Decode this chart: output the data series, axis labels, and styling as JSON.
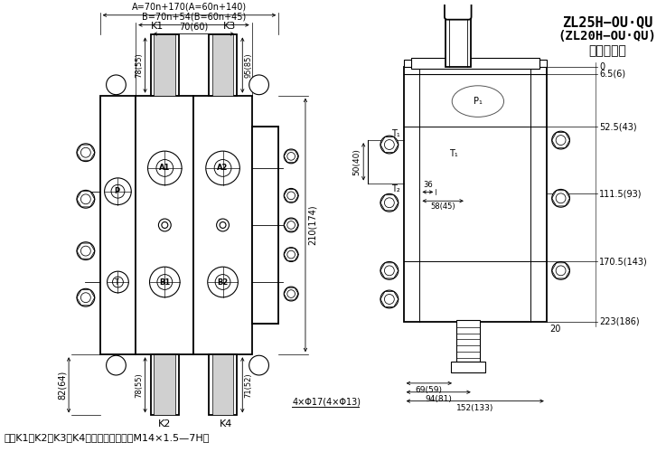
{
  "bg_color": "#ffffff",
  "line_color": "#000000",
  "title1": "ZL25H−OU·QU",
  "title2": "(ZL20H−OU·QU)",
  "title3": "多路换向阀",
  "note": "注：K1、K2、K3、K4口螺纹尺寸均为：M14×1.5—7H。",
  "dim_A": "A=70n+170(A=60n+140)",
  "dim_B": "B=70n+54(B=60n+45)",
  "dim_70": "70(60)",
  "dim_78": "78(55)",
  "dim_95": "95(85)",
  "dim_82": "82(64)",
  "dim_71": "71(52)",
  "dim_78b": "78(55)",
  "dim_210": "210(174)",
  "dim_4xphi": "4×Φ17(4×Φ13)",
  "label_K1": "K1",
  "label_K2": "K2",
  "label_K3": "K3",
  "label_K4": "K4",
  "label_P": "P",
  "label_A1": "A1",
  "label_A2": "A2",
  "label_B1": "B1",
  "label_B2": "B2",
  "label_T": "T",
  "right_dim_0": "0",
  "right_dim_6": "6.5(6)",
  "right_dim_52": "52.5(43)",
  "right_dim_111": "111.5(93)",
  "right_dim_170": "170.5(143)",
  "right_dim_223": "223(186)",
  "right_dim_50": "50(40)",
  "right_dim_36": "36",
  "right_dim_58": "58(45)",
  "right_dim_69": "69(59)",
  "right_dim_94": "94(81)",
  "right_dim_152": "152(133)",
  "right_dim_20": "20",
  "label_P1": "P₁",
  "label_T1": "T₁",
  "label_T2": "T₂"
}
